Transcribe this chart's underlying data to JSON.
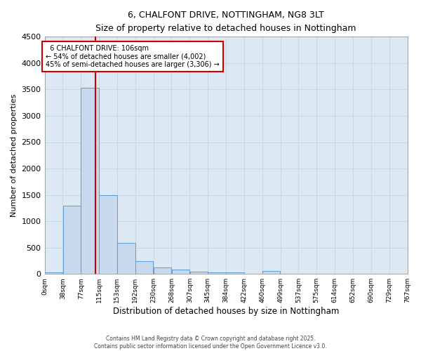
{
  "title_line1": "6, CHALFONT DRIVE, NOTTINGHAM, NG8 3LT",
  "title_line2": "Size of property relative to detached houses in Nottingham",
  "xlabel": "Distribution of detached houses by size in Nottingham",
  "ylabel": "Number of detached properties",
  "bar_values": [
    30,
    1300,
    3530,
    1490,
    590,
    245,
    120,
    80,
    45,
    35,
    25,
    0,
    50,
    0,
    0,
    0,
    0,
    0,
    0,
    0
  ],
  "bin_labels": [
    "0sqm",
    "38sqm",
    "77sqm",
    "115sqm",
    "153sqm",
    "192sqm",
    "230sqm",
    "268sqm",
    "307sqm",
    "345sqm",
    "384sqm",
    "422sqm",
    "460sqm",
    "499sqm",
    "537sqm",
    "575sqm",
    "614sqm",
    "652sqm",
    "690sqm",
    "729sqm",
    "767sqm"
  ],
  "bar_color": "#c9d9ed",
  "bar_edge_color": "#5b9bd5",
  "grid_color": "#c8d8e8",
  "background_color": "#dce9f5",
  "property_size": 106,
  "annotation_text_line1": "6 CHALFONT DRIVE: 106sqm",
  "annotation_text_line2": "← 54% of detached houses are smaller (4,002)",
  "annotation_text_line3": "45% of semi-detached houses are larger (3,306) →",
  "vline_color": "#cc0000",
  "annotation_box_color": "#cc0000",
  "ylim": [
    0,
    4500
  ],
  "yticks": [
    0,
    500,
    1000,
    1500,
    2000,
    2500,
    3000,
    3500,
    4000,
    4500
  ],
  "footer_text": "Contains HM Land Registry data © Crown copyright and database right 2025.\nContains public sector information licensed under the Open Government Licence v3.0.",
  "bin_width": 38
}
